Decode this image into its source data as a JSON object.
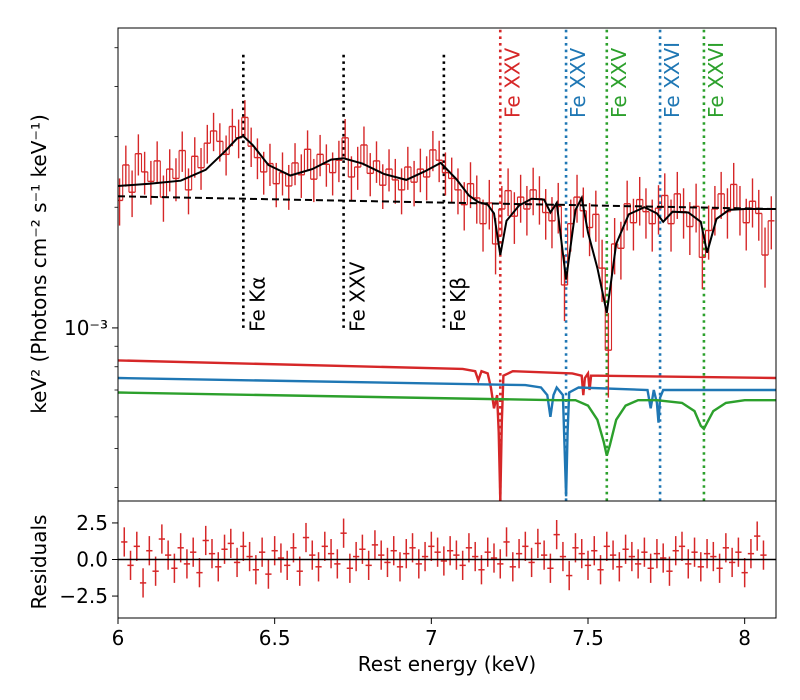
{
  "chart_data": [
    {
      "type": "line",
      "name": "spectrum-panel",
      "xlim": [
        6.0,
        8.1
      ],
      "ylim": [
        0.00037,
        0.0056
      ],
      "yscale": "log",
      "ylabel": "keV² (Photons cm⁻² s⁻¹ keV⁻¹)",
      "yticks": [
        {
          "value": 0.001,
          "label": "10⁻³"
        }
      ],
      "line_markers": [
        {
          "x": 6.4,
          "label": "Fe Kα",
          "color": "#000000",
          "y_from": 0.001,
          "y_to": 0.0049,
          "label_pos": "below"
        },
        {
          "x": 6.72,
          "label": "Fe XXV",
          "color": "#000000",
          "y_from": 0.001,
          "y_to": 0.0049,
          "label_pos": "below"
        },
        {
          "x": 7.04,
          "label": "Fe Kβ",
          "color": "#000000",
          "y_from": 0.001,
          "y_to": 0.0049,
          "label_pos": "below"
        },
        {
          "x": 7.22,
          "label": "Fe XXV",
          "color": "#d62728",
          "label_pos": "top"
        },
        {
          "x": 7.43,
          "label": "Fe XXV",
          "color": "#1f77b4",
          "label_pos": "top"
        },
        {
          "x": 7.56,
          "label": "Fe XXV",
          "color": "#2ca02c",
          "label_pos": "top"
        },
        {
          "x": 7.73,
          "label": "Fe XXVI",
          "color": "#1f77b4",
          "label_pos": "top"
        },
        {
          "x": 7.87,
          "label": "Fe XXVI",
          "color": "#2ca02c",
          "label_pos": "top"
        }
      ],
      "continuum": {
        "x": [
          6.0,
          8.1
        ],
        "y": [
          0.00213,
          0.00198
        ],
        "style": "dashed",
        "color": "#000000"
      },
      "model": {
        "color": "#000000",
        "x": [
          6.0,
          6.1,
          6.2,
          6.28,
          6.34,
          6.38,
          6.4,
          6.43,
          6.48,
          6.55,
          6.62,
          6.68,
          6.72,
          6.78,
          6.85,
          6.92,
          6.98,
          7.03,
          7.08,
          7.12,
          7.15,
          7.18,
          7.2,
          7.22,
          7.24,
          7.28,
          7.32,
          7.36,
          7.38,
          7.4,
          7.43,
          7.46,
          7.48,
          7.5,
          7.53,
          7.56,
          7.59,
          7.63,
          7.68,
          7.72,
          7.74,
          7.77,
          7.82,
          7.86,
          7.88,
          7.91,
          7.95,
          8.0,
          8.1
        ],
        "y": [
          0.00226,
          0.00229,
          0.00233,
          0.00248,
          0.00275,
          0.00297,
          0.00301,
          0.00286,
          0.00255,
          0.0024,
          0.00249,
          0.00263,
          0.00265,
          0.00257,
          0.00242,
          0.00234,
          0.00246,
          0.00258,
          0.00235,
          0.00214,
          0.00206,
          0.00203,
          0.00193,
          0.00152,
          0.00185,
          0.00202,
          0.0021,
          0.00209,
          0.00194,
          0.00205,
          0.00132,
          0.00197,
          0.00211,
          0.00173,
          0.00141,
          0.00109,
          0.00162,
          0.00192,
          0.002,
          0.00193,
          0.00184,
          0.00195,
          0.00194,
          0.00184,
          0.00154,
          0.00187,
          0.00197,
          0.00198,
          0.00198
        ]
      },
      "data": {
        "color": "#d62728",
        "x": [
          6.005,
          6.025,
          6.045,
          6.065,
          6.085,
          6.105,
          6.125,
          6.145,
          6.165,
          6.185,
          6.205,
          6.225,
          6.245,
          6.265,
          6.285,
          6.305,
          6.325,
          6.345,
          6.365,
          6.385,
          6.405,
          6.425,
          6.445,
          6.465,
          6.485,
          6.505,
          6.525,
          6.545,
          6.565,
          6.585,
          6.605,
          6.625,
          6.645,
          6.665,
          6.685,
          6.705,
          6.725,
          6.745,
          6.765,
          6.785,
          6.805,
          6.825,
          6.845,
          6.865,
          6.885,
          6.905,
          6.925,
          6.945,
          6.965,
          6.985,
          7.005,
          7.025,
          7.045,
          7.065,
          7.085,
          7.105,
          7.125,
          7.145,
          7.165,
          7.185,
          7.205,
          7.225,
          7.245,
          7.265,
          7.285,
          7.305,
          7.325,
          7.345,
          7.365,
          7.385,
          7.405,
          7.425,
          7.445,
          7.465,
          7.485,
          7.505,
          7.525,
          7.545,
          7.565,
          7.585,
          7.605,
          7.625,
          7.645,
          7.665,
          7.685,
          7.705,
          7.725,
          7.745,
          7.765,
          7.785,
          7.805,
          7.825,
          7.845,
          7.865,
          7.885,
          7.905,
          7.925,
          7.945,
          7.965,
          7.985,
          8.005,
          8.025,
          8.045,
          8.065,
          8.085
        ],
        "y": [
          0.00208,
          0.00255,
          0.00218,
          0.00272,
          0.00245,
          0.00232,
          0.00261,
          0.00212,
          0.00249,
          0.00236,
          0.00277,
          0.00221,
          0.00268,
          0.00251,
          0.00289,
          0.0031,
          0.00292,
          0.00271,
          0.00318,
          0.00298,
          0.00335,
          0.00284,
          0.00266,
          0.00245,
          0.00257,
          0.00229,
          0.00244,
          0.00226,
          0.00258,
          0.00241,
          0.00279,
          0.00235,
          0.00271,
          0.00256,
          0.00244,
          0.00262,
          0.00298,
          0.00238,
          0.00252,
          0.00286,
          0.00243,
          0.00261,
          0.00227,
          0.00249,
          0.00234,
          0.00221,
          0.00252,
          0.00231,
          0.00249,
          0.00238,
          0.00278,
          0.00262,
          0.00244,
          0.00236,
          0.00221,
          0.00203,
          0.00229,
          0.00211,
          0.00182,
          0.00205,
          0.00162,
          0.00198,
          0.0022,
          0.0019,
          0.00212,
          0.00198,
          0.00221,
          0.0021,
          0.00194,
          0.00185,
          0.00201,
          0.00128,
          0.00182,
          0.00212,
          0.00196,
          0.00178,
          0.00192,
          0.00141,
          0.00088,
          0.00162,
          0.00158,
          0.00204,
          0.00183,
          0.00209,
          0.00195,
          0.00182,
          0.00199,
          0.00214,
          0.00182,
          0.00216,
          0.00195,
          0.00179,
          0.00201,
          0.0015,
          0.00175,
          0.00198,
          0.00216,
          0.00195,
          0.00228,
          0.00198,
          0.00183,
          0.00207,
          0.00193,
          0.00152,
          0.00185
        ],
        "yerr": [
          0.00028,
          0.0003,
          0.00029,
          0.00032,
          0.0003,
          0.00029,
          0.00031,
          0.00028,
          0.0003,
          0.00029,
          0.00032,
          0.00029,
          0.00031,
          0.0003,
          0.00032,
          0.00034,
          0.00032,
          0.00031,
          0.00034,
          0.00033,
          0.00035,
          0.00032,
          0.00031,
          0.0003,
          0.00031,
          0.00029,
          0.0003,
          0.00029,
          0.00031,
          0.0003,
          0.00032,
          0.00029,
          0.00032,
          0.00031,
          0.0003,
          0.00031,
          0.00034,
          0.0003,
          0.00031,
          0.00032,
          0.0003,
          0.00031,
          0.00029,
          0.0003,
          0.0003,
          0.00029,
          0.00031,
          0.0003,
          0.00031,
          0.0003,
          0.00032,
          0.00031,
          0.0003,
          0.0003,
          0.00029,
          0.00028,
          0.0003,
          0.00029,
          0.00027,
          0.00029,
          0.00026,
          0.00028,
          0.0003,
          0.00028,
          0.00029,
          0.00028,
          0.0003,
          0.00029,
          0.00028,
          0.00027,
          0.00029,
          0.00024,
          0.00027,
          0.00029,
          0.00028,
          0.00027,
          0.00028,
          0.00025,
          0.00021,
          0.00026,
          0.00026,
          0.00029,
          0.00027,
          0.00029,
          0.00028,
          0.00027,
          0.00028,
          0.00029,
          0.00027,
          0.00029,
          0.00028,
          0.00027,
          0.00028,
          0.00025,
          0.00027,
          0.00028,
          0.00029,
          0.00028,
          0.0003,
          0.00028,
          0.00027,
          0.00029,
          0.00028,
          0.00026,
          0.00028
        ]
      },
      "components": [
        {
          "color": "#d62728",
          "x": [
            6.0,
            7.1,
            7.14,
            7.15,
            7.16,
            7.18,
            7.19,
            7.2,
            7.21,
            7.215,
            7.22,
            7.225,
            7.23,
            7.26,
            7.45,
            7.48,
            7.485,
            7.49,
            7.5,
            7.505,
            7.51,
            7.53,
            8.1
          ],
          "y": [
            0.00083,
            0.00079,
            0.00078,
            0.00074,
            0.00078,
            0.00077,
            0.00071,
            0.00063,
            0.00068,
            0.00055,
            0.00037,
            0.00058,
            0.00076,
            0.00078,
            0.00077,
            0.00076,
            0.00068,
            0.00075,
            0.00077,
            0.0007,
            0.00076,
            0.00076,
            0.00075
          ]
        },
        {
          "color": "#1f77b4",
          "x": [
            6.0,
            7.3,
            7.35,
            7.37,
            7.38,
            7.39,
            7.4,
            7.42,
            7.425,
            7.43,
            7.435,
            7.44,
            7.47,
            7.69,
            7.7,
            7.71,
            7.72,
            7.725,
            7.73,
            7.74,
            8.1
          ],
          "y": [
            0.00075,
            0.00072,
            0.00071,
            0.00068,
            0.0006,
            0.00068,
            0.00071,
            0.00068,
            0.00051,
            0.00038,
            0.00055,
            0.00069,
            0.00071,
            0.0007,
            0.00063,
            0.0007,
            0.00065,
            0.00058,
            0.00067,
            0.0007,
            0.0007
          ]
        },
        {
          "color": "#2ca02c",
          "x": [
            6.0,
            7.4,
            7.46,
            7.5,
            7.53,
            7.55,
            7.56,
            7.57,
            7.59,
            7.62,
            7.66,
            7.72,
            7.8,
            7.84,
            7.86,
            7.87,
            7.88,
            7.9,
            7.94,
            8.0,
            8.1
          ],
          "y": [
            0.00069,
            0.00066,
            0.00066,
            0.00064,
            0.00059,
            0.00052,
            0.00048,
            0.00051,
            0.00059,
            0.00064,
            0.00066,
            0.00066,
            0.00065,
            0.00062,
            0.00057,
            0.00056,
            0.00058,
            0.00062,
            0.00065,
            0.00066,
            0.00066
          ]
        }
      ]
    },
    {
      "type": "scatter",
      "name": "residuals-panel",
      "xlim": [
        6.0,
        8.1
      ],
      "ylim": [
        -4.0,
        4.0
      ],
      "xlabel": "Rest energy (keV)",
      "ylabel": "Residuals",
      "xticks": [
        {
          "value": 6.0,
          "label": "6"
        },
        {
          "value": 6.5,
          "label": "6.5"
        },
        {
          "value": 7.0,
          "label": "7"
        },
        {
          "value": 7.5,
          "label": "7.5"
        },
        {
          "value": 8.0,
          "label": "8"
        }
      ],
      "yticks": [
        {
          "value": 2.5,
          "label": "2.5"
        },
        {
          "value": 0.0,
          "label": "0.0"
        },
        {
          "value": -2.5,
          "label": "−2.5"
        }
      ],
      "zero_line": 0,
      "data": {
        "color": "#d62728",
        "x": [
          6.02,
          6.04,
          6.06,
          6.08,
          6.1,
          6.12,
          6.14,
          6.16,
          6.18,
          6.2,
          6.22,
          6.24,
          6.26,
          6.28,
          6.3,
          6.32,
          6.34,
          6.36,
          6.38,
          6.4,
          6.42,
          6.44,
          6.46,
          6.48,
          6.5,
          6.52,
          6.54,
          6.56,
          6.58,
          6.6,
          6.62,
          6.64,
          6.66,
          6.68,
          6.7,
          6.72,
          6.74,
          6.76,
          6.78,
          6.8,
          6.82,
          6.84,
          6.86,
          6.88,
          6.9,
          6.92,
          6.94,
          6.96,
          6.98,
          7.0,
          7.02,
          7.04,
          7.06,
          7.08,
          7.1,
          7.12,
          7.14,
          7.16,
          7.18,
          7.2,
          7.22,
          7.24,
          7.26,
          7.28,
          7.3,
          7.32,
          7.34,
          7.36,
          7.38,
          7.4,
          7.42,
          7.44,
          7.46,
          7.48,
          7.5,
          7.52,
          7.54,
          7.56,
          7.58,
          7.6,
          7.62,
          7.64,
          7.66,
          7.68,
          7.7,
          7.72,
          7.74,
          7.76,
          7.78,
          7.8,
          7.82,
          7.84,
          7.86,
          7.88,
          7.9,
          7.92,
          7.94,
          7.96,
          7.98,
          8.0,
          8.02,
          8.04,
          8.06
        ],
        "y": [
          1.2,
          -0.4,
          0.9,
          -1.6,
          0.6,
          -0.8,
          1.4,
          0.3,
          -0.6,
          0.8,
          -0.3,
          0.5,
          -0.9,
          1.3,
          0.4,
          -0.5,
          0.7,
          1.1,
          -0.2,
          0.9,
          0.2,
          -0.7,
          0.5,
          -1.0,
          0.6,
          0.1,
          -0.4,
          0.8,
          -0.8,
          1.5,
          0.3,
          -0.5,
          0.9,
          0.4,
          -0.3,
          1.8,
          -0.6,
          0.2,
          0.7,
          -0.4,
          1.0,
          0.3,
          -0.2,
          0.6,
          -0.5,
          0.4,
          0.8,
          -0.3,
          0.2,
          0.9,
          0.5,
          -0.1,
          0.6,
          0.3,
          -0.4,
          0.8,
          0.2,
          -0.7,
          0.5,
          0.1,
          -0.3,
          1.2,
          -0.5,
          0.4,
          0.9,
          -0.2,
          1.1,
          0.3,
          -0.6,
          1.7,
          0.2,
          -1.1,
          0.8,
          0.4,
          -0.4,
          0.6,
          -0.7,
          0.9,
          0.3,
          -0.5,
          0.7,
          0.2,
          -0.3,
          0.5,
          -0.6,
          0.4,
          0.1,
          -0.8,
          0.6,
          0.9,
          -0.3,
          0.5,
          -0.5,
          0.4,
          0.2,
          -0.6,
          0.8,
          -0.2,
          0.5,
          -0.9,
          0.4,
          1.6,
          0.3
        ],
        "yerr": [
          1,
          1,
          1,
          1,
          1,
          1,
          1,
          1,
          1,
          1,
          1,
          1,
          1,
          1,
          1,
          1,
          1,
          1,
          1,
          1,
          1,
          1,
          1,
          1,
          1,
          1,
          1,
          1,
          1,
          1,
          1,
          1,
          1,
          1,
          1,
          1,
          1,
          1,
          1,
          1,
          1,
          1,
          1,
          1,
          1,
          1,
          1,
          1,
          1,
          1,
          1,
          1,
          1,
          1,
          1,
          1,
          1,
          1,
          1,
          1,
          1,
          1,
          1,
          1,
          1,
          1,
          1,
          1,
          1,
          1,
          1,
          1,
          1,
          1,
          1,
          1,
          1,
          1,
          1,
          1,
          1,
          1,
          1,
          1,
          1,
          1,
          1,
          1,
          1,
          1,
          1,
          1,
          1,
          1,
          1,
          1,
          1,
          1,
          1,
          1,
          1,
          1,
          1
        ]
      }
    }
  ]
}
